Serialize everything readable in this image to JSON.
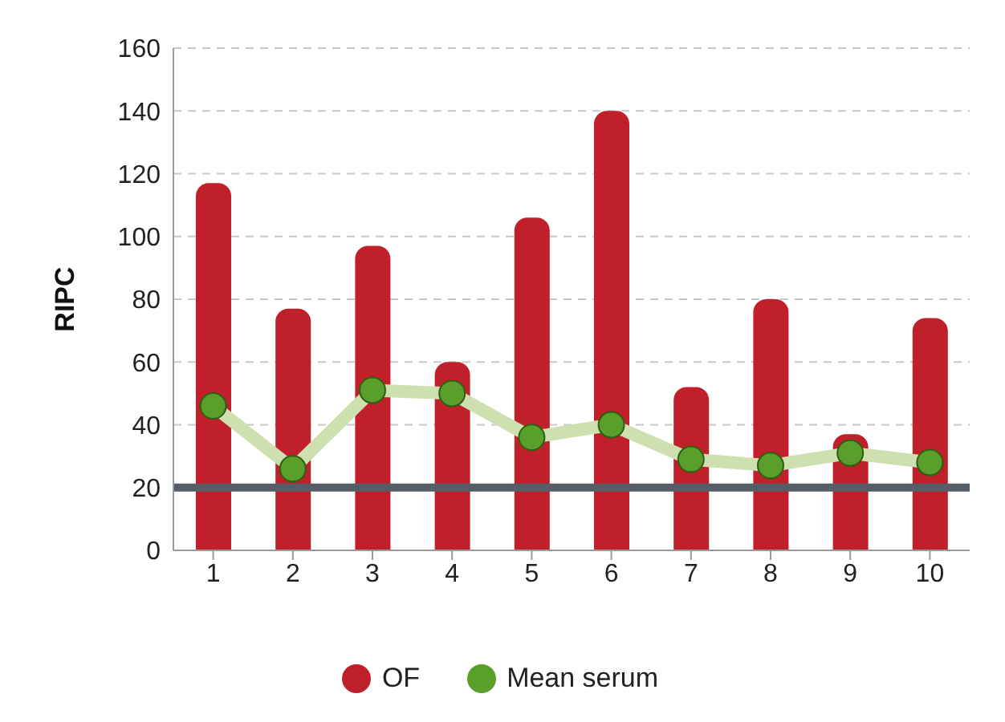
{
  "chart_data": {
    "type": "bar",
    "ylabel": "RIPC",
    "categories": [
      "1",
      "2",
      "3",
      "4",
      "5",
      "6",
      "7",
      "8",
      "9",
      "10"
    ],
    "series": [
      {
        "name": "OF",
        "color": "#c0202a",
        "values": [
          117,
          77,
          97,
          60,
          106,
          140,
          52,
          80,
          37,
          74
        ]
      },
      {
        "name": "Mean serum",
        "type": "line",
        "color": "#5a9e2c",
        "values": [
          46,
          26,
          51,
          50,
          36,
          40,
          29,
          27,
          31,
          28
        ]
      }
    ],
    "ylim": [
      0,
      160
    ],
    "yticks": [
      0,
      20,
      40,
      60,
      80,
      100,
      120,
      140,
      160
    ],
    "grid": "y",
    "legend": "bottom",
    "marker": "circle",
    "ref_lines": [
      {
        "axis": "y",
        "value": 20,
        "color": "#555e66"
      }
    ]
  }
}
